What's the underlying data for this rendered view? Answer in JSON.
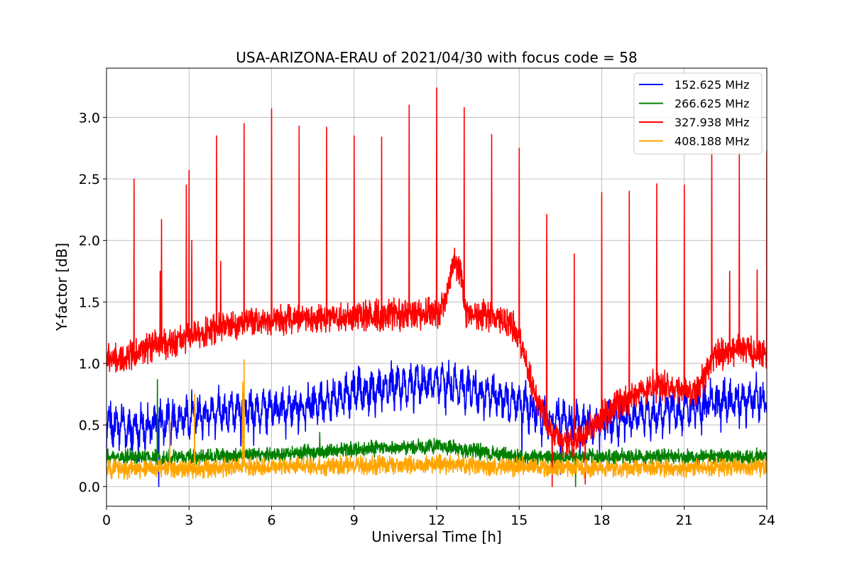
{
  "chart_data": {
    "type": "line",
    "title": "USA-ARIZONA-ERAU of 2021/04/30 with focus code = 58",
    "xlabel": "Universal Time [h]",
    "ylabel": "Y-factor [dB]",
    "xlim": [
      0,
      24
    ],
    "ylim": [
      -0.16,
      3.4
    ],
    "xticks": [
      0,
      3,
      6,
      9,
      12,
      15,
      18,
      21,
      24
    ],
    "xtick_labels": [
      "0",
      "3",
      "6",
      "9",
      "12",
      "15",
      "18",
      "21",
      "24"
    ],
    "yticks": [
      0.0,
      0.5,
      1.0,
      1.5,
      2.0,
      2.5,
      3.0
    ],
    "ytick_labels": [
      "0.0",
      "0.5",
      "1.0",
      "1.5",
      "2.0",
      "2.5",
      "3.0"
    ],
    "grid": true,
    "legend_position": "top-right",
    "series": [
      {
        "name": "152.625 MHz",
        "color": "#0000ff",
        "baseline": {
          "x": [
            0,
            1,
            2,
            3,
            4,
            5,
            6,
            7,
            8,
            9,
            10,
            11,
            12,
            13,
            14,
            15,
            15.5,
            16,
            16.5,
            17,
            17.5,
            18,
            19,
            20,
            21,
            22,
            23,
            24
          ],
          "y": [
            0.5,
            0.45,
            0.5,
            0.55,
            0.6,
            0.6,
            0.6,
            0.62,
            0.68,
            0.75,
            0.78,
            0.8,
            0.82,
            0.78,
            0.72,
            0.65,
            0.6,
            0.55,
            0.52,
            0.5,
            0.48,
            0.5,
            0.55,
            0.58,
            0.6,
            0.65,
            0.68,
            0.7
          ]
        },
        "noise": 0.1,
        "oscillation": 0.22,
        "dips": [
          {
            "x": 1.9,
            "y": 0.0
          },
          {
            "x": 15.1,
            "y": 0.2
          },
          {
            "x": 16.5,
            "y": 0.1
          }
        ]
      },
      {
        "name": "266.625 MHz",
        "color": "#008000",
        "baseline": {
          "x": [
            0,
            3,
            6,
            9,
            12,
            13,
            15,
            18,
            21,
            24
          ],
          "y": [
            0.24,
            0.24,
            0.26,
            0.3,
            0.33,
            0.3,
            0.24,
            0.24,
            0.24,
            0.24
          ]
        },
        "noise": 0.05,
        "oscillation": 0.0,
        "spikes": [
          {
            "x": 1.85,
            "y": 0.87
          },
          {
            "x": 7.75,
            "y": 0.44
          },
          {
            "x": 17.05,
            "y": 0.0
          }
        ]
      },
      {
        "name": "327.938 MHz",
        "color": "#ff0000",
        "baseline": {
          "x": [
            0,
            0.5,
            1,
            2,
            3,
            4,
            5,
            6,
            7,
            8,
            9,
            10,
            11,
            12,
            12.3,
            12.6,
            12.9,
            13,
            14,
            14.8,
            15,
            15.5,
            16,
            16.5,
            17,
            17.5,
            18,
            18.5,
            19,
            19.5,
            20,
            20.5,
            21,
            21.5,
            22,
            23,
            24
          ],
          "y": [
            1.05,
            1.02,
            1.1,
            1.15,
            1.22,
            1.28,
            1.33,
            1.35,
            1.36,
            1.37,
            1.38,
            1.39,
            1.4,
            1.41,
            1.5,
            1.82,
            1.75,
            1.4,
            1.4,
            1.3,
            1.2,
            0.8,
            0.5,
            0.35,
            0.35,
            0.45,
            0.55,
            0.65,
            0.72,
            0.78,
            0.82,
            0.82,
            0.78,
            0.78,
            1.05,
            1.12,
            1.08
          ]
        },
        "noise": 0.1,
        "oscillation": 0.0,
        "spikes": [
          {
            "x": 1.0,
            "y": 2.5
          },
          {
            "x": 1.95,
            "y": 1.75
          },
          {
            "x": 2.0,
            "y": 2.17
          },
          {
            "x": 2.9,
            "y": 2.45
          },
          {
            "x": 3.0,
            "y": 2.57
          },
          {
            "x": 3.1,
            "y": 2.0
          },
          {
            "x": 4.0,
            "y": 2.85
          },
          {
            "x": 4.15,
            "y": 1.83
          },
          {
            "x": 5.0,
            "y": 2.95
          },
          {
            "x": 6.0,
            "y": 3.07
          },
          {
            "x": 7.0,
            "y": 2.93
          },
          {
            "x": 8.0,
            "y": 2.92
          },
          {
            "x": 9.0,
            "y": 2.85
          },
          {
            "x": 10.0,
            "y": 2.84
          },
          {
            "x": 11.0,
            "y": 3.1
          },
          {
            "x": 12.0,
            "y": 3.24
          },
          {
            "x": 13.0,
            "y": 3.08
          },
          {
            "x": 14.0,
            "y": 2.86
          },
          {
            "x": 15.0,
            "y": 2.75
          },
          {
            "x": 16.0,
            "y": 2.21
          },
          {
            "x": 17.0,
            "y": 1.89
          },
          {
            "x": 18.0,
            "y": 2.39
          },
          {
            "x": 19.0,
            "y": 2.4
          },
          {
            "x": 20.0,
            "y": 2.46
          },
          {
            "x": 21.0,
            "y": 2.45
          },
          {
            "x": 22.0,
            "y": 2.75
          },
          {
            "x": 22.65,
            "y": 1.75
          },
          {
            "x": 23.0,
            "y": 2.72
          },
          {
            "x": 23.65,
            "y": 1.76
          },
          {
            "x": 24.0,
            "y": 2.73
          }
        ],
        "dips": [
          {
            "x": 16.2,
            "y": 0.0
          },
          {
            "x": 17.4,
            "y": 0.02
          }
        ]
      },
      {
        "name": "408.188 MHz",
        "color": "#ffa500",
        "baseline": {
          "x": [
            0,
            3,
            6,
            9,
            12,
            15,
            18,
            21,
            24
          ],
          "y": [
            0.14,
            0.15,
            0.16,
            0.17,
            0.18,
            0.16,
            0.15,
            0.15,
            0.16
          ]
        },
        "noise": 0.06,
        "oscillation": 0.0,
        "spikes": [
          {
            "x": 3.2,
            "y": 0.75
          },
          {
            "x": 5.0,
            "y": 1.03
          },
          {
            "x": 4.95,
            "y": 0.85
          },
          {
            "x": 2.3,
            "y": 0.55
          }
        ]
      }
    ]
  }
}
